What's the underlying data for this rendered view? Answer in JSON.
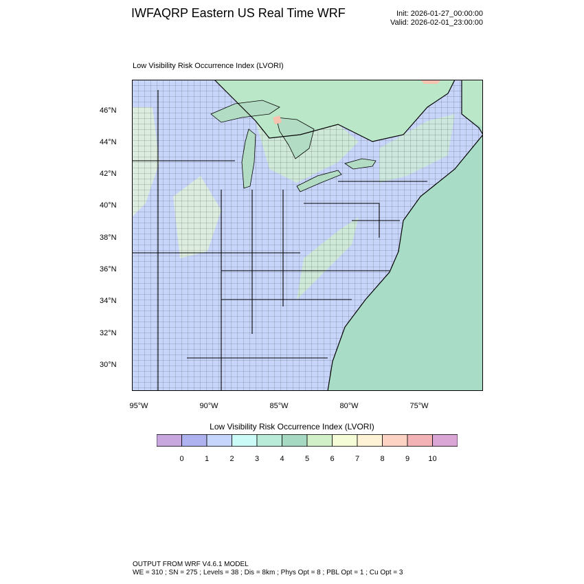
{
  "header": {
    "title": "IWFAQRP Eastern US Real Time WRF",
    "init": "Init: 2026-01-27_00:00:00",
    "valid": "Valid: 2026-02-01_23:00:00"
  },
  "map": {
    "subtitle": "Low Visibility Risk Occurrence Index   (LVORI)",
    "lat_labels": [
      "46°N",
      "44°N",
      "42°N",
      "40°N",
      "38°N",
      "36°N",
      "34°N",
      "32°N",
      "30°N"
    ],
    "lon_labels": [
      "95°W",
      "90°W",
      "85°W",
      "80°W",
      "75°W"
    ],
    "colors": {
      "land": "#c7d5fb",
      "ocean": "#a9dcc6",
      "canada": "#b9e7c8",
      "lakes": "#b2ddc4",
      "green_patch": "#cfeed0",
      "light_patch": "#e6f6d4",
      "warm_patch": "#f7c2b0"
    }
  },
  "colorbar": {
    "title": "Low Visibility Risk Occurrence Index  (LVORI)",
    "labels": [
      "0",
      "1",
      "2",
      "3",
      "4",
      "5",
      "6",
      "7",
      "8",
      "9",
      "10"
    ],
    "colors": [
      "#c8a6de",
      "#aeb2ee",
      "#c6d5fb",
      "#cbfbf6",
      "#b9ecd8",
      "#a6d9c1",
      "#d2f0c8",
      "#f5fdd7",
      "#fef3d5",
      "#fdd3c4",
      "#f2b2b6",
      "#d9a6d6"
    ]
  },
  "footer": {
    "line1": "OUTPUT FROM WRF V4.6.1 MODEL",
    "line2": "WE = 310 ; SN = 275 ; Levels = 38 ; Dis = 8km ; Phys Opt = 8 ; PBL Opt = 1 ; Cu Opt = 3"
  }
}
